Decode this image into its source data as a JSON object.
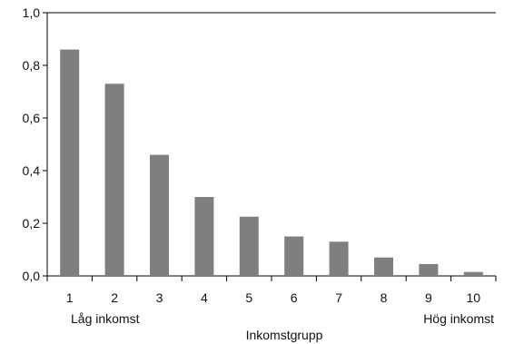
{
  "chart_data": {
    "type": "bar",
    "categories": [
      "1",
      "2",
      "3",
      "4",
      "5",
      "6",
      "7",
      "8",
      "9",
      "10"
    ],
    "values": [
      0.86,
      0.73,
      0.46,
      0.3,
      0.225,
      0.15,
      0.13,
      0.07,
      0.045,
      0.015
    ],
    "y_ticks": [
      "0,0",
      "0,2",
      "0,4",
      "0,6",
      "0,8",
      "1,0"
    ],
    "ylim": [
      0,
      1.0
    ],
    "xlabel": "Inkomstgrupp",
    "ylabel": "",
    "annotations": {
      "low": "Låg inkomst",
      "high": "Hög inkomst"
    },
    "grid": false,
    "bar_color": "#7f7f7f"
  }
}
